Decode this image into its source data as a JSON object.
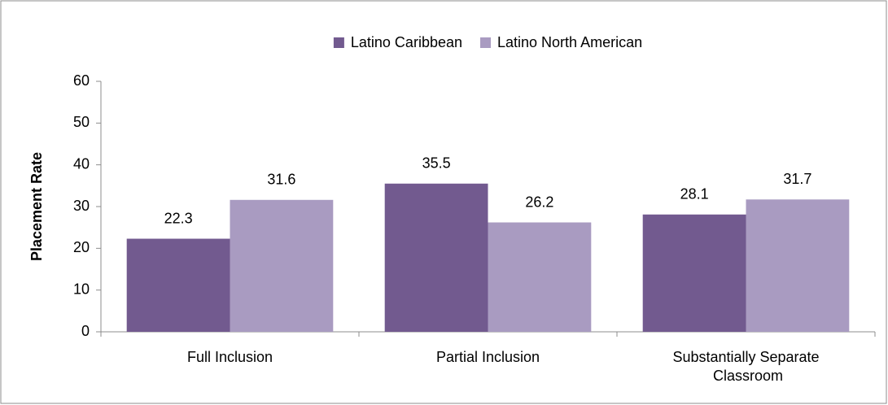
{
  "chart_data": {
    "type": "bar",
    "y_label": "Placement Rate",
    "categories": [
      "Full Inclusion",
      "Partial Inclusion",
      "Substantially Separate Classroom"
    ],
    "series": [
      {
        "name": "Latino Caribbean",
        "color": "#725a8f",
        "values": [
          22.3,
          35.5,
          28.1
        ]
      },
      {
        "name": "Latino North American",
        "color": "#a99bc1",
        "values": [
          31.6,
          26.2,
          31.7
        ]
      }
    ],
    "ylim": [
      0,
      60
    ],
    "yticks": [
      0,
      10,
      20,
      30,
      40,
      50,
      60
    ],
    "legend": "top"
  }
}
